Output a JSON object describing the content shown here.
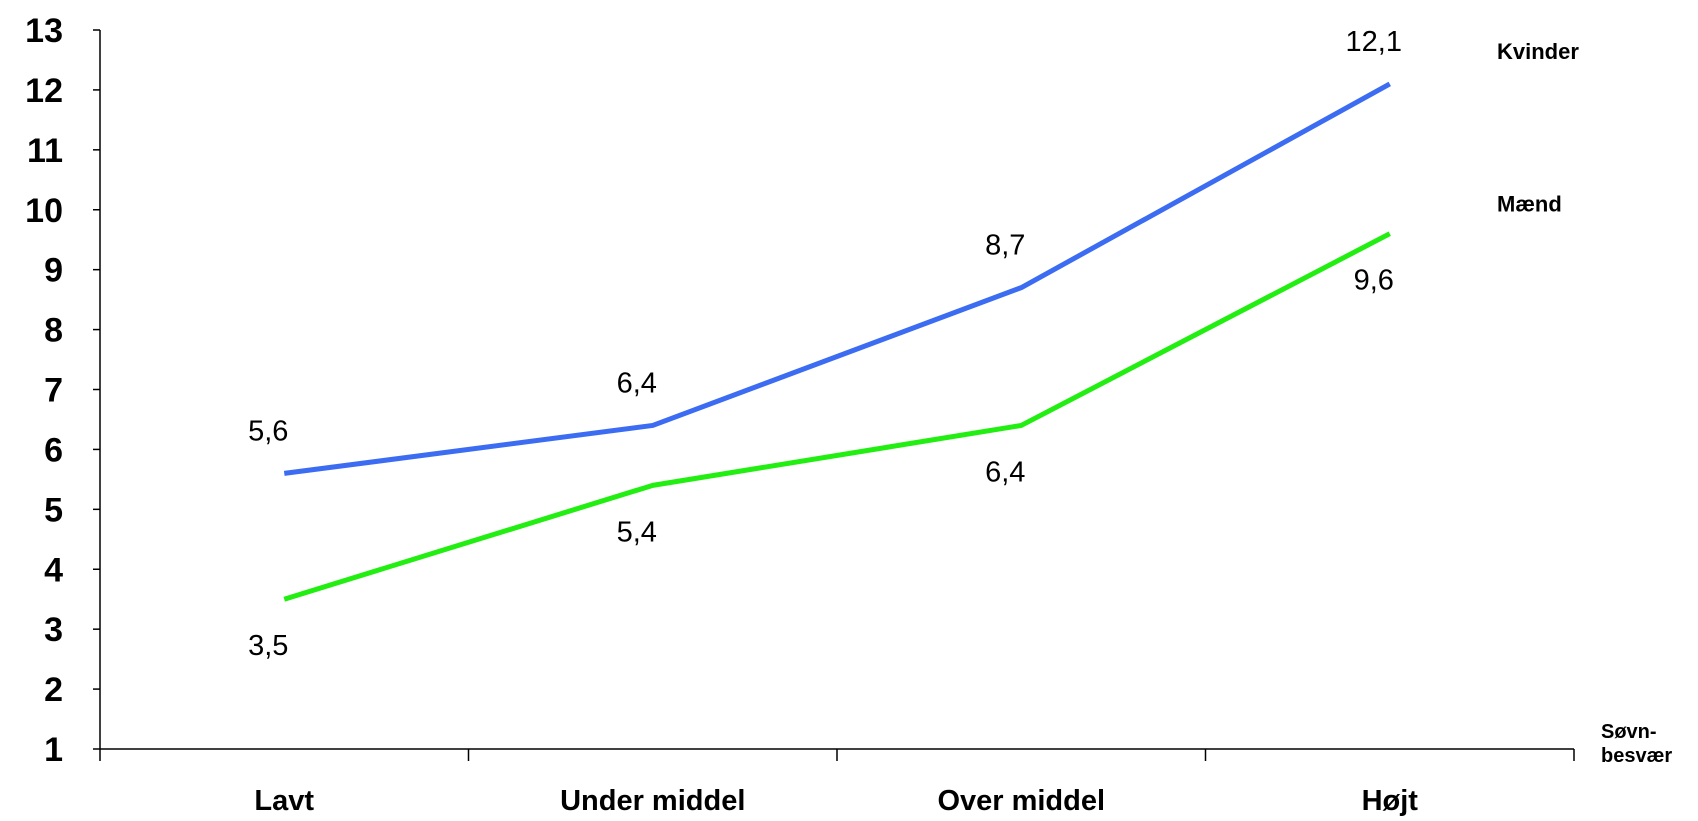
{
  "chart_data": {
    "type": "line",
    "categories": [
      "Lavt",
      "Under middel",
      "Over middel",
      "Højt"
    ],
    "ylim": [
      1,
      13
    ],
    "yticks": [
      1,
      2,
      3,
      4,
      5,
      6,
      7,
      8,
      9,
      10,
      11,
      12,
      13
    ],
    "xlabel": [
      "Søvn-",
      "besvær"
    ],
    "grid": false,
    "series": [
      {
        "name": "Kvinder",
        "color": "#3b6cf2",
        "values": [
          5.6,
          6.4,
          8.7,
          12.1
        ],
        "labels": [
          "5,6",
          "6,4",
          "8,7",
          "12,1"
        ]
      },
      {
        "name": "Mænd",
        "color": "#22ee11",
        "values": [
          3.5,
          5.4,
          6.4,
          9.6
        ],
        "labels": [
          "3,5",
          "5,4",
          "6,4",
          "9,6"
        ]
      }
    ]
  }
}
